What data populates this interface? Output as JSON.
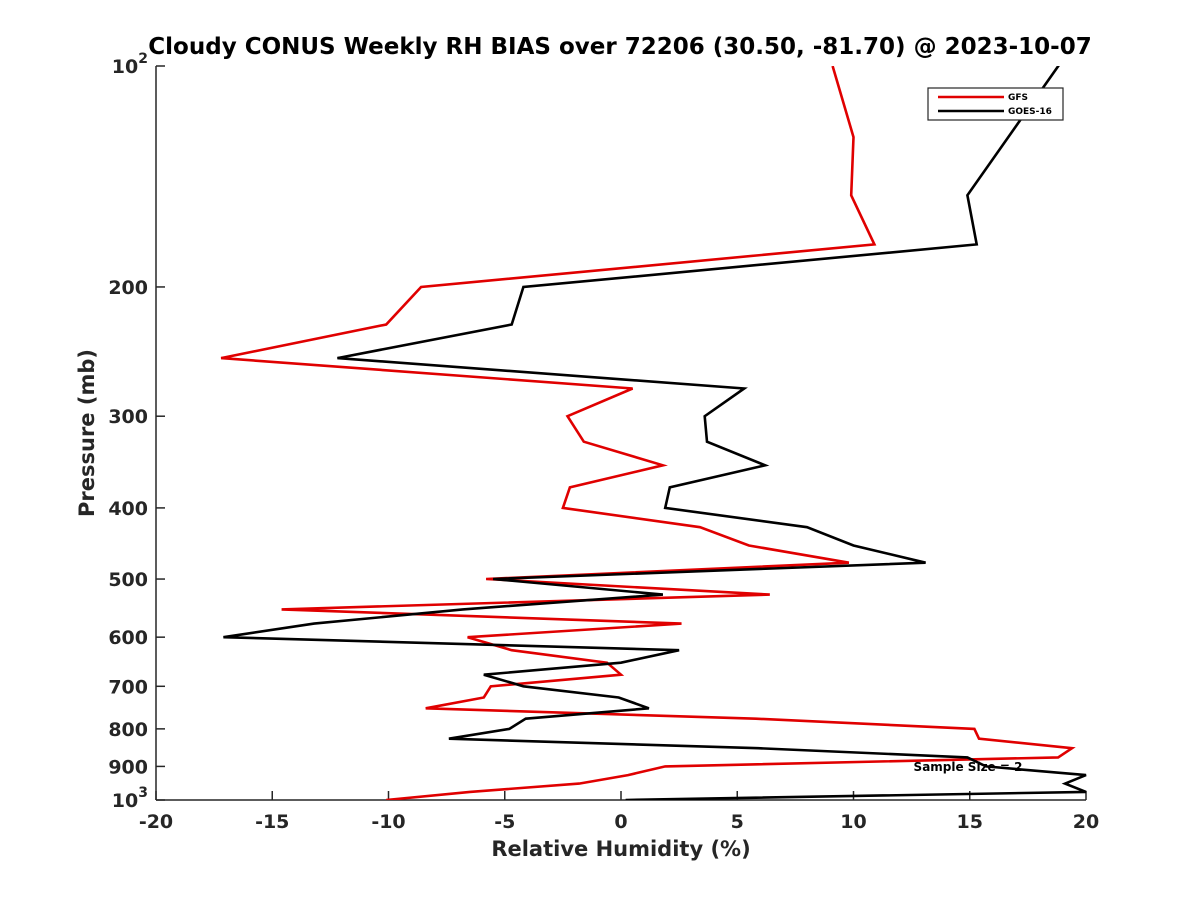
{
  "chart_data": {
    "type": "line",
    "title": "Cloudy CONUS Weekly RH BIAS over 72206 (30.50, -81.70) @ 2023-10-07",
    "xlabel": "Relative Humidity (%)",
    "ylabel": "Pressure (mb)",
    "xlim": [
      -20,
      20
    ],
    "ylim": [
      100,
      1000
    ],
    "y_scale": "log",
    "y_direction": "reversed",
    "x_ticks": [
      "-20",
      "-15",
      "-10",
      "-5",
      "0",
      "5",
      "10",
      "15",
      "20"
    ],
    "y_ticks": [
      {
        "value": 100,
        "base": "10",
        "exp": "2"
      },
      {
        "value": 200,
        "label": "200"
      },
      {
        "value": 300,
        "label": "300"
      },
      {
        "value": 400,
        "label": "400"
      },
      {
        "value": 500,
        "label": "500"
      },
      {
        "value": 600,
        "label": "600"
      },
      {
        "value": 700,
        "label": "700"
      },
      {
        "value": 800,
        "label": "800"
      },
      {
        "value": 900,
        "label": "900"
      },
      {
        "value": 1000,
        "base": "10",
        "exp": "3"
      }
    ],
    "legend_position": "top-right",
    "annotation": "Sample Size = 2",
    "series": [
      {
        "name": "GFS",
        "color": "#e00000",
        "points": [
          {
            "x": 9.1,
            "p": 100
          },
          {
            "x": 10,
            "p": 125
          },
          {
            "x": 9.9,
            "p": 150
          },
          {
            "x": 10.9,
            "p": 175
          },
          {
            "x": -8.6,
            "p": 200
          },
          {
            "x": -10.1,
            "p": 225
          },
          {
            "x": -17.2,
            "p": 250
          },
          {
            "x": 0.5,
            "p": 275
          },
          {
            "x": -2.3,
            "p": 300
          },
          {
            "x": -1.6,
            "p": 325
          },
          {
            "x": 1.8,
            "p": 350
          },
          {
            "x": -2.2,
            "p": 375
          },
          {
            "x": -2.5,
            "p": 400
          },
          {
            "x": 3.4,
            "p": 425
          },
          {
            "x": 5.5,
            "p": 450
          },
          {
            "x": 9.8,
            "p": 475
          },
          {
            "x": -5.8,
            "p": 500
          },
          {
            "x": 6.4,
            "p": 525
          },
          {
            "x": -14.6,
            "p": 550
          },
          {
            "x": 2.6,
            "p": 575
          },
          {
            "x": -6.6,
            "p": 600
          },
          {
            "x": -4.7,
            "p": 625
          },
          {
            "x": -0.6,
            "p": 650
          },
          {
            "x": 0,
            "p": 675
          },
          {
            "x": -5.6,
            "p": 700
          },
          {
            "x": -5.9,
            "p": 725
          },
          {
            "x": -8.4,
            "p": 750
          },
          {
            "x": 5.8,
            "p": 775
          },
          {
            "x": 15.2,
            "p": 800
          },
          {
            "x": 15.4,
            "p": 825
          },
          {
            "x": 19.4,
            "p": 850
          },
          {
            "x": 18.8,
            "p": 875
          },
          {
            "x": 1.9,
            "p": 900
          },
          {
            "x": 0.3,
            "p": 925
          },
          {
            "x": -1.8,
            "p": 950
          },
          {
            "x": -6.5,
            "p": 975
          },
          {
            "x": -10.1,
            "p": 1000
          }
        ]
      },
      {
        "name": "GOES-16",
        "color": "#000000",
        "points": [
          {
            "x": 19.0,
            "p": 98
          },
          {
            "x": 14.9,
            "p": 150
          },
          {
            "x": 15.3,
            "p": 175
          },
          {
            "x": -4.2,
            "p": 200
          },
          {
            "x": -4.7,
            "p": 225
          },
          {
            "x": -12.2,
            "p": 250
          },
          {
            "x": 5.3,
            "p": 275
          },
          {
            "x": 3.6,
            "p": 300
          },
          {
            "x": 3.7,
            "p": 325
          },
          {
            "x": 6.2,
            "p": 350
          },
          {
            "x": 2.1,
            "p": 375
          },
          {
            "x": 1.9,
            "p": 400
          },
          {
            "x": 8.0,
            "p": 425
          },
          {
            "x": 10.0,
            "p": 450
          },
          {
            "x": 13.1,
            "p": 475
          },
          {
            "x": -5.5,
            "p": 500
          },
          {
            "x": 1.8,
            "p": 525
          },
          {
            "x": -6.8,
            "p": 550
          },
          {
            "x": -13.2,
            "p": 575
          },
          {
            "x": -17.1,
            "p": 600
          },
          {
            "x": 2.5,
            "p": 625
          },
          {
            "x": 0,
            "p": 650
          },
          {
            "x": -5.9,
            "p": 675
          },
          {
            "x": -4.2,
            "p": 700
          },
          {
            "x": -0.1,
            "p": 725
          },
          {
            "x": 1.2,
            "p": 750
          },
          {
            "x": -4.1,
            "p": 775
          },
          {
            "x": -4.8,
            "p": 800
          },
          {
            "x": -7.4,
            "p": 825
          },
          {
            "x": 5.9,
            "p": 850
          },
          {
            "x": 14.9,
            "p": 875
          },
          {
            "x": 15.7,
            "p": 900
          },
          {
            "x": 20.0,
            "p": 925
          },
          {
            "x": 19.1,
            "p": 950
          },
          {
            "x": 20.0,
            "p": 975
          },
          {
            "x": 0.2,
            "p": 1000
          }
        ]
      }
    ]
  }
}
